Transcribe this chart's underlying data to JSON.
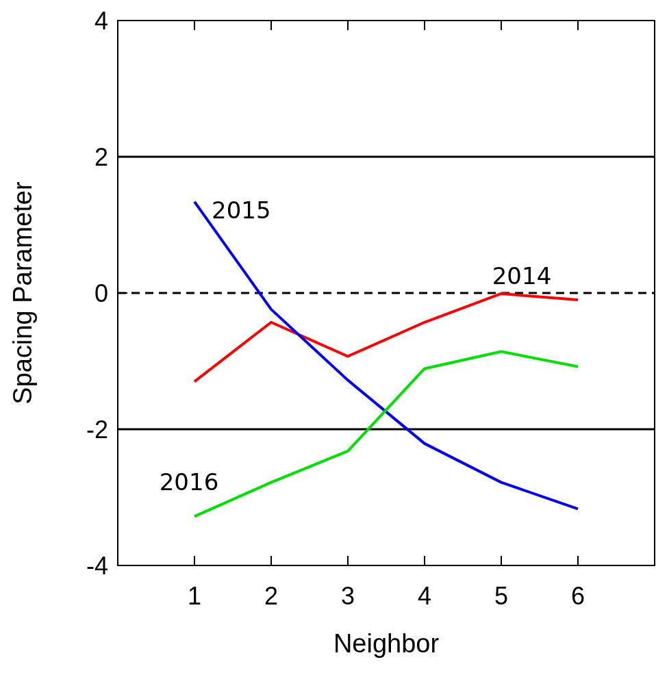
{
  "chart_data": {
    "type": "line",
    "xlabel": "Neighbor",
    "ylabel": "Spacing Parameter",
    "x": [
      1,
      2,
      3,
      4,
      5,
      6
    ],
    "series": [
      {
        "name": "2014",
        "color": "#ff0000",
        "values": [
          -1.3,
          -0.43,
          -0.93,
          -0.43,
          -0.01,
          -0.1
        ]
      },
      {
        "name": "2015",
        "color": "#0000ff",
        "values": [
          1.34,
          -0.24,
          -1.28,
          -2.21,
          -2.78,
          -3.17
        ]
      },
      {
        "name": "2016",
        "color": "#00e000",
        "values": [
          -3.28,
          -2.78,
          -2.32,
          -1.11,
          -0.86,
          -1.08
        ]
      }
    ],
    "xlim": [
      0,
      7
    ],
    "xticks": [
      1,
      2,
      3,
      4,
      5,
      6
    ],
    "ylim": [
      -4,
      4
    ],
    "yticks": [
      -4,
      -2,
      0,
      2,
      4
    ],
    "ref_lines": [
      {
        "axis": "y",
        "value": 2,
        "color": "#000000",
        "line_style": "solid"
      },
      {
        "axis": "y",
        "value": 0,
        "color": "#000000",
        "line_style": "dashed"
      },
      {
        "axis": "y",
        "value": -2,
        "color": "#000000",
        "line_style": "solid"
      }
    ],
    "grid": false,
    "legend": false,
    "marker": "none",
    "line_style": "solid"
  }
}
